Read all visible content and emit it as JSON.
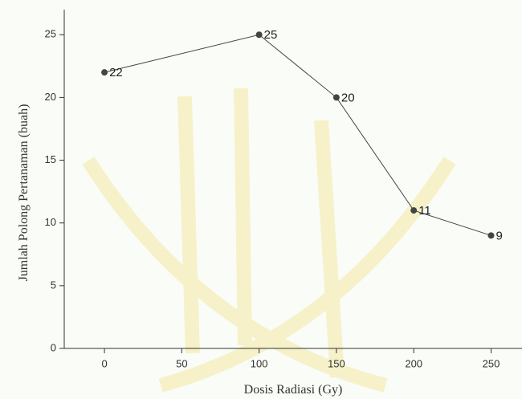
{
  "chart_data": {
    "type": "line",
    "x_label": "Dosis Radiasi (Gy)",
    "y_label": "Jumlah Polong Pertanaman (buah)",
    "x": [
      0,
      100,
      150,
      200,
      250
    ],
    "series": [
      {
        "color": "#444444",
        "values": [
          22,
          25,
          20,
          11,
          9
        ]
      }
    ],
    "xlim": [
      -26,
      270
    ],
    "xticks": [
      0,
      50,
      100,
      150,
      200,
      250
    ],
    "ylim": [
      0,
      27
    ],
    "yticks": [
      0,
      5,
      10,
      15,
      20,
      25
    ],
    "data_labels": true
  }
}
